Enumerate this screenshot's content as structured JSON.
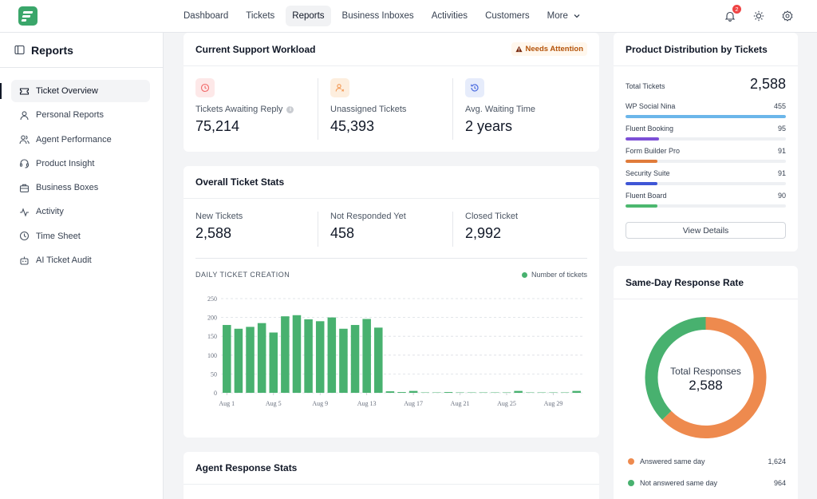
{
  "nav": {
    "items": [
      "Dashboard",
      "Tickets",
      "Reports",
      "Business Inboxes",
      "Activities",
      "Customers"
    ],
    "more_label": "More",
    "notification_count": "2"
  },
  "sidebar": {
    "title": "Reports",
    "items": [
      {
        "label": "Ticket Overview",
        "icon": "ticket-icon"
      },
      {
        "label": "Personal Reports",
        "icon": "user-icon"
      },
      {
        "label": "Agent Performance",
        "icon": "users-icon"
      },
      {
        "label": "Product Insight",
        "icon": "headset-icon"
      },
      {
        "label": "Business Boxes",
        "icon": "briefcase-icon"
      },
      {
        "label": "Activity",
        "icon": "activity-icon"
      },
      {
        "label": "Time Sheet",
        "icon": "clock-icon"
      },
      {
        "label": "AI Ticket Audit",
        "icon": "bot-icon"
      }
    ]
  },
  "workload": {
    "title": "Current Support Workload",
    "attention_label": "Needs Attention",
    "metrics": [
      {
        "label": "Tickets Awaiting Reply",
        "value": "75,214",
        "icon": "clock-icon",
        "color": "#f16a6a"
      },
      {
        "label": "Unassigned Tickets",
        "value": "45,393",
        "icon": "user-unassigned-icon",
        "color": "#f39a57"
      },
      {
        "label": "Avg. Waiting Time",
        "value": "2 years",
        "icon": "history-icon",
        "color": "#4f6fe0"
      }
    ]
  },
  "stats": {
    "title": "Overall Ticket Stats",
    "metrics": [
      {
        "label": "New Tickets",
        "value": "2,588"
      },
      {
        "label": "Not Responded Yet",
        "value": "458"
      },
      {
        "label": "Closed Ticket",
        "value": "2,992"
      }
    ]
  },
  "daily_chart": {
    "title": "DAILY TICKET CREATION",
    "legend": "Number of tickets"
  },
  "chart_data": {
    "type": "bar",
    "title": "DAILY TICKET CREATION",
    "xlabel": "",
    "ylabel": "",
    "ylim": [
      0,
      250
    ],
    "yticks": [
      0,
      50,
      100,
      150,
      200,
      250
    ],
    "xtick_labels": [
      "Aug 1",
      "Aug 5",
      "Aug 9",
      "Aug 13",
      "Aug 17",
      "Aug 21",
      "Aug 25",
      "Aug 29"
    ],
    "categories": [
      "Aug 1",
      "Aug 2",
      "Aug 3",
      "Aug 4",
      "Aug 5",
      "Aug 6",
      "Aug 7",
      "Aug 8",
      "Aug 9",
      "Aug 10",
      "Aug 11",
      "Aug 12",
      "Aug 13",
      "Aug 14",
      "Aug 15",
      "Aug 16",
      "Aug 17",
      "Aug 18",
      "Aug 19",
      "Aug 20",
      "Aug 21",
      "Aug 22",
      "Aug 23",
      "Aug 24",
      "Aug 25",
      "Aug 26",
      "Aug 27",
      "Aug 28",
      "Aug 29",
      "Aug 30",
      "Aug 31"
    ],
    "series": [
      {
        "name": "Number of tickets",
        "color": "#48b16f",
        "values": [
          180,
          170,
          175,
          185,
          160,
          203,
          206,
          195,
          190,
          200,
          170,
          180,
          196,
          173,
          4,
          2,
          5,
          1,
          1,
          2,
          1,
          1,
          1,
          1,
          1,
          5,
          1,
          1,
          1,
          1,
          5
        ]
      }
    ],
    "grid": true,
    "legend_position": "top-right"
  },
  "agent_response": {
    "title": "Agent Response Stats"
  },
  "product_distribution": {
    "title": "Product Distribution by Tickets",
    "total_label": "Total Tickets",
    "total_value": "2,588",
    "items": [
      {
        "name": "WP Social Nina",
        "value": 455,
        "display": "455",
        "color": "#6bb6ea",
        "fill": 1.0
      },
      {
        "name": "Fluent Booking",
        "value": 95,
        "display": "95",
        "color": "#7c4fd6",
        "fill": 0.21
      },
      {
        "name": "Form Builder Pro",
        "value": 91,
        "display": "91",
        "color": "#e07b3a",
        "fill": 0.2
      },
      {
        "name": "Security Suite",
        "value": 91,
        "display": "91",
        "color": "#3f56d6",
        "fill": 0.2
      },
      {
        "name": "Fluent Board",
        "value": 90,
        "display": "90",
        "color": "#4cb86f",
        "fill": 0.2
      }
    ],
    "view_details_label": "View Details"
  },
  "response_rate": {
    "title": "Same-Day Response Rate",
    "center_label": "Total Responses",
    "center_value": "2,588",
    "legend": [
      {
        "label": "Answered same day",
        "value": 1624,
        "display": "1,624",
        "color": "#ee8a4e"
      },
      {
        "label": "Not answered same day",
        "value": 964,
        "display": "964",
        "color": "#48b16f"
      }
    ]
  }
}
